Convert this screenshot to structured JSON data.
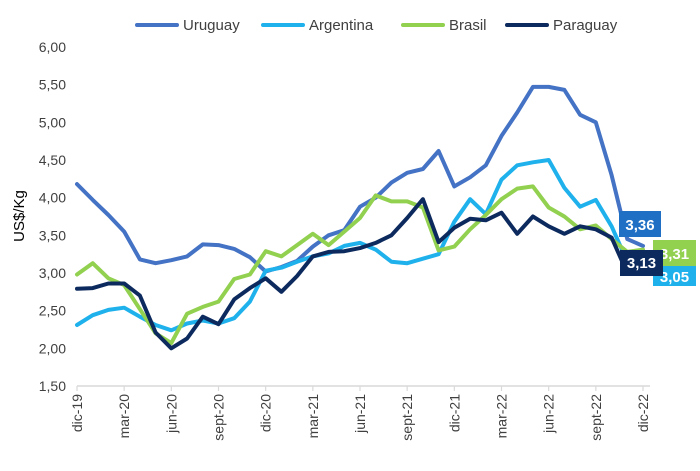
{
  "chart_data": {
    "type": "line",
    "title": "",
    "xlabel": "",
    "ylabel": "US$/Kg",
    "ylim": [
      1.5,
      6.0
    ],
    "yticks": [
      "1,50",
      "2,00",
      "2,50",
      "3,00",
      "3,50",
      "4,00",
      "4,50",
      "5,00",
      "5,50",
      "6,00"
    ],
    "ytick_values": [
      1.5,
      2.0,
      2.5,
      3.0,
      3.5,
      4.0,
      4.5,
      5.0,
      5.5,
      6.0
    ],
    "grid": false,
    "legend_position": "top",
    "x": [
      "dic-19",
      "ene-20",
      "feb-20",
      "mar-20",
      "abr-20",
      "may-20",
      "jun-20",
      "jul-20",
      "ago-20",
      "sept-20",
      "oct-20",
      "nov-20",
      "dic-20",
      "ene-21",
      "feb-21",
      "mar-21",
      "abr-21",
      "may-21",
      "jun-21",
      "jul-21",
      "ago-21",
      "sept-21",
      "oct-21",
      "nov-21",
      "dic-21",
      "ene-22",
      "feb-22",
      "mar-22",
      "abr-22",
      "may-22",
      "jun-22",
      "jul-22",
      "ago-22",
      "sept-22",
      "oct-22",
      "nov-22",
      "dic-22"
    ],
    "xtick_labels": [
      "dic-19",
      "mar-20",
      "jun-20",
      "sept-20",
      "dic-20",
      "mar-21",
      "jun-21",
      "sept-21",
      "dic-21",
      "mar-22",
      "jun-22",
      "sept-22",
      "dic-22"
    ],
    "series": [
      {
        "name": "Uruguay",
        "color": "#4472C4",
        "values": [
          4.18,
          3.97,
          3.77,
          3.55,
          3.18,
          3.13,
          3.17,
          3.22,
          3.38,
          3.37,
          3.32,
          3.21,
          3.02,
          3.08,
          3.16,
          3.35,
          3.5,
          3.57,
          3.88,
          4.0,
          4.2,
          4.33,
          4.38,
          4.62,
          4.15,
          4.27,
          4.43,
          4.82,
          5.13,
          5.47,
          5.47,
          5.43,
          5.1,
          5.0,
          4.3,
          3.45,
          3.36
        ],
        "end_label": "3,36"
      },
      {
        "name": "Argentina",
        "color": "#1EB1EC",
        "values": [
          2.31,
          2.44,
          2.51,
          2.54,
          2.42,
          2.31,
          2.24,
          2.33,
          2.37,
          2.33,
          2.4,
          2.62,
          3.03,
          3.07,
          3.15,
          3.22,
          3.26,
          3.36,
          3.4,
          3.31,
          3.15,
          3.13,
          3.19,
          3.25,
          3.68,
          3.98,
          3.78,
          4.24,
          4.43,
          4.47,
          4.5,
          4.13,
          3.88,
          3.97,
          3.62,
          3.15,
          3.05
        ],
        "end_label": "3,05"
      },
      {
        "name": "Brasil",
        "color": "#92D050",
        "values": [
          2.98,
          3.13,
          2.93,
          2.84,
          2.52,
          2.2,
          2.07,
          2.46,
          2.55,
          2.62,
          2.92,
          2.98,
          3.29,
          3.22,
          3.37,
          3.52,
          3.37,
          3.55,
          3.73,
          4.03,
          3.95,
          3.95,
          3.87,
          3.3,
          3.35,
          3.58,
          3.77,
          3.98,
          4.12,
          4.15,
          3.87,
          3.75,
          3.58,
          3.63,
          3.45,
          3.28,
          3.31
        ],
        "end_label": "3,31"
      },
      {
        "name": "Paraguay",
        "color": "#0D2A5E",
        "values": [
          2.79,
          2.8,
          2.86,
          2.86,
          2.7,
          2.21,
          2.0,
          2.13,
          2.42,
          2.32,
          2.65,
          2.8,
          2.93,
          2.75,
          2.96,
          3.22,
          3.28,
          3.29,
          3.33,
          3.4,
          3.5,
          3.73,
          3.98,
          3.41,
          3.6,
          3.72,
          3.7,
          3.8,
          3.52,
          3.75,
          3.62,
          3.52,
          3.62,
          3.58,
          3.47,
          3.0,
          3.13
        ],
        "end_label": "3,13"
      }
    ]
  }
}
